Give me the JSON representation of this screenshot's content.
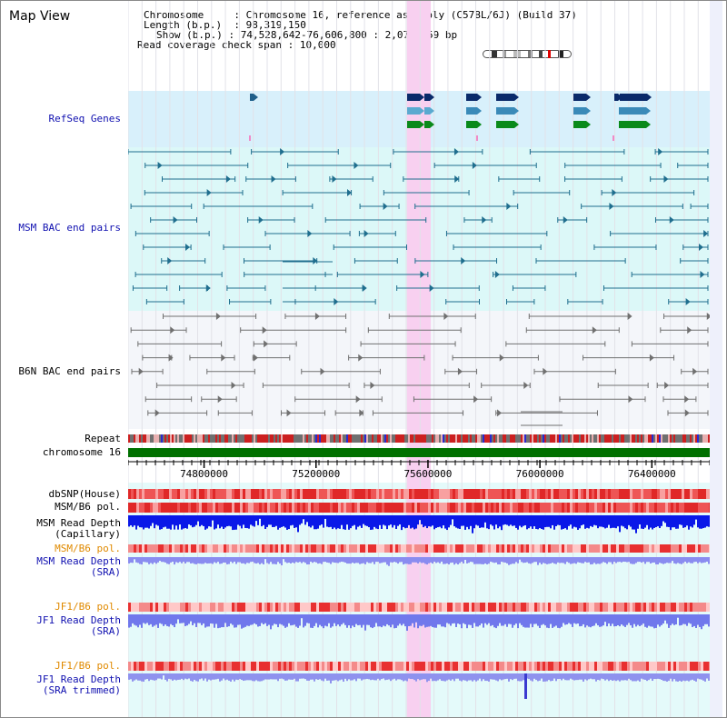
{
  "view": {
    "title": "Map View",
    "info": {
      "chromosome_label": "Chromosome",
      "chromosome_value": "Chromosome 16, reference assembly (C57BL/6J) (Build 37)",
      "length_label": "Length (b.p.)",
      "length_value": "98,319,150",
      "show_label": "Show (b.p.)",
      "show_value": "74,528,642-76,606,800 : 2,078,159 bp",
      "coverage_label": "Read coverage check span",
      "coverage_value": "10,000"
    }
  },
  "tracks": {
    "refseq": "RefSeq Genes",
    "msm_bac": "MSM BAC end pairs",
    "b6n_bac": "B6N BAC end pairs",
    "repeat": "Repeat",
    "chromosome": "chromosome 16",
    "dbsnp": "dbSNP(House)",
    "msm_b6_pol_1": "MSM/B6 pol.",
    "msm_read_depth_cap_1": "MSM Read Depth",
    "msm_read_depth_cap_2": "(Capillary)",
    "msm_b6_pol_2": "MSM/B6 pol.",
    "msm_read_depth_sra_1": "MSM Read Depth",
    "msm_read_depth_sra_2": "(SRA)",
    "jf1_b6_pol_1": "JF1/B6 pol.",
    "jf1_read_depth_sra_1": "JF1 Read Depth",
    "jf1_read_depth_sra_2": "(SRA)",
    "jf1_b6_pol_2": "JF1/B6 pol.",
    "jf1_read_depth_trim_1": "JF1 Read Depth",
    "jf1_read_depth_trim_2": "(SRA trimmed)"
  },
  "ruler": {
    "start_bp": 74528642,
    "end_bp": 76606800,
    "labels": [
      "74800000",
      "75200000",
      "75600000",
      "76000000",
      "76400000"
    ],
    "label_values": [
      74800000,
      75200000,
      75600000,
      76000000,
      76400000
    ]
  },
  "highlight": {
    "start_bp": 75525000,
    "end_bp": 75610000
  },
  "colors": {
    "refseq_bg": "#d8f0fb",
    "msm_bg": "#dcf8f8",
    "b6n_bg": "#f4f6fa",
    "chromosome_bar": "#007000",
    "highlight": "#f8d0f0",
    "msm_depth": "#0a18e8",
    "sra_depth": "#8a8cf0",
    "pol": "#e83030",
    "feature_msm": "#1f6e8e",
    "feature_b6n": "#707070"
  }
}
